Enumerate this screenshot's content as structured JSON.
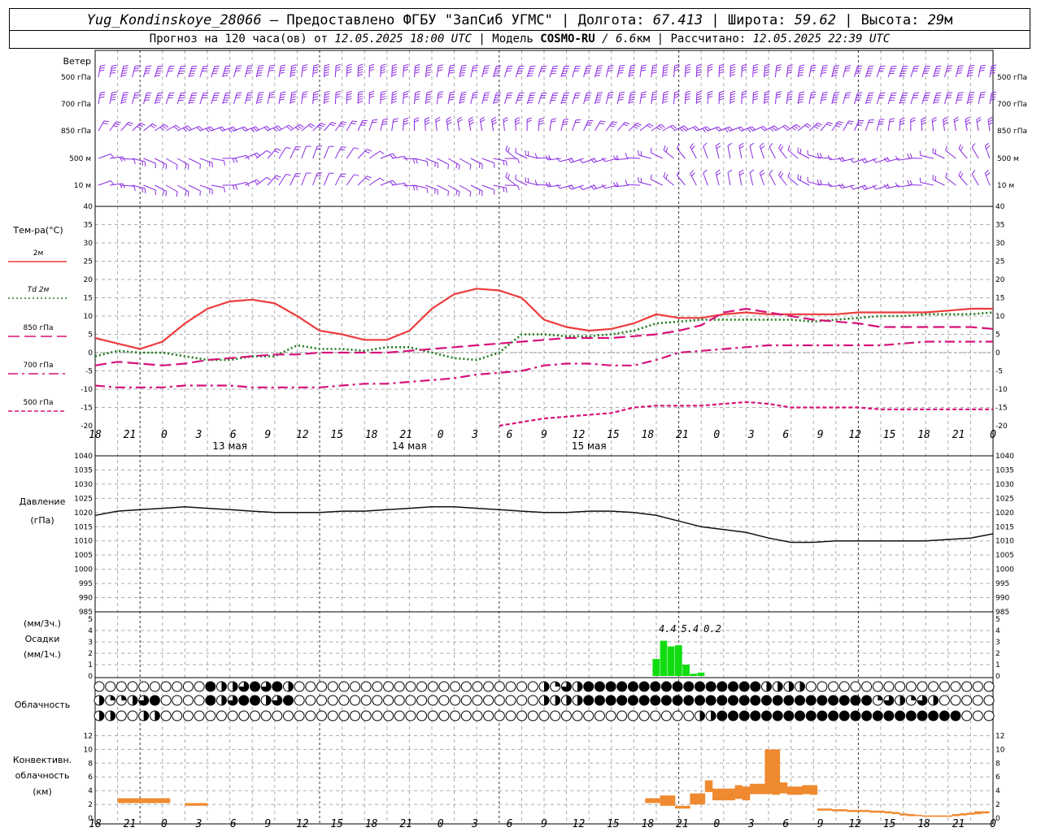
{
  "header": {
    "station": "Yug_Kondinskoye_28066",
    "provider": "– Предоставлено ФГБУ \"ЗапСиб УГМС\" |",
    "lon_label": "Долгота:",
    "lon": "67.413",
    "lat_label": "| Широта:",
    "lat": "59.62",
    "alt_label": "| Высота:",
    "alt": "29",
    "alt_unit": "м",
    "forecast_label": "Прогноз на 120 часа(ов) от",
    "forecast_start": "12.05.2025 18:00 UTC",
    "model_label": "| Модель",
    "model": "COSMO-RU",
    "resolution": "/ 6.6",
    "res_unit": "км",
    "calc_label": "| Рассчитано:",
    "calc_time": "12.05.2025 22:39 UTC"
  },
  "wind": {
    "title": "Ветер",
    "levels": [
      "500 гПа",
      "700 гПа",
      "850 гПа",
      "500 м",
      "10  м"
    ],
    "color": "#8a2be2"
  },
  "temp": {
    "title": "Тем-ра(°C)",
    "legend": [
      {
        "label": "2м",
        "color": "#ee3b3b",
        "style": "solid"
      },
      {
        "label": "Td 2м",
        "color": "#1a7a1a",
        "style": "dotted"
      },
      {
        "label": "850 гПа",
        "color": "#d6117a",
        "style": "longdash"
      },
      {
        "label": "700 гПа",
        "color": "#d6117a",
        "style": "dashdot"
      },
      {
        "label": "500 гПа",
        "color": "#d6117a",
        "style": "dash"
      }
    ]
  },
  "pressure": {
    "title_1": "Давление",
    "title_2": "(гПа)"
  },
  "precip": {
    "title_1": "(мм/3ч.)",
    "title_2": "Осадки",
    "title_3": "(мм/1ч.)",
    "color": "#11dd11"
  },
  "clouds": {
    "title": "Облачность"
  },
  "convective": {
    "title_1": "Конвективн.",
    "title_2": "облачность",
    "title_3": "(км)",
    "color": "#f08a30"
  },
  "x_axis": {
    "ticks": [
      "18",
      "21",
      "0",
      "3",
      "6",
      "9",
      "12",
      "15",
      "18",
      "21",
      "0",
      "3",
      "6",
      "9",
      "12",
      "15",
      "18",
      "21",
      "0",
      "3",
      "6",
      "9",
      "12",
      "15",
      "18",
      "21",
      "0"
    ],
    "dates": [
      "13 мая",
      "14 мая",
      "15 мая"
    ]
  },
  "chart_data": [
    {
      "type": "line",
      "name": "temperature",
      "x_hours": [
        0,
        3,
        6,
        9,
        12,
        15,
        18,
        21,
        24,
        27,
        30,
        33,
        36,
        39,
        42,
        45,
        48,
        51,
        54,
        57,
        60,
        63,
        66,
        69,
        72,
        75,
        78,
        81,
        84,
        87,
        90,
        93,
        96,
        99,
        102,
        105,
        108,
        111,
        114,
        117,
        120
      ],
      "ylim": [
        -20,
        40
      ],
      "yticks": [
        -20,
        -15,
        -10,
        -5,
        0,
        5,
        10,
        15,
        20,
        25,
        30,
        35,
        40
      ],
      "series": [
        {
          "name": "2м",
          "values": [
            4,
            2.5,
            1,
            3,
            8,
            12,
            14,
            14.5,
            13.5,
            10,
            6,
            5,
            3.5,
            3.5,
            6,
            12,
            16,
            17.5,
            17,
            15,
            9,
            7,
            6,
            6.5,
            8,
            10.5,
            9.5,
            9.5,
            10.5,
            11,
            10.5,
            10.5,
            10.5,
            10.5,
            11,
            11,
            11,
            11,
            11.5,
            12,
            12
          ]
        },
        {
          "name": "Td 2м",
          "values": [
            -1,
            0.5,
            0,
            0,
            -1,
            -2,
            -2,
            -1,
            -1,
            2,
            1,
            1,
            0.5,
            1.5,
            1.5,
            0,
            -1.5,
            -2,
            0,
            5,
            5,
            4.5,
            4.5,
            5,
            6,
            8,
            8.5,
            9,
            9,
            9,
            9,
            9,
            8.5,
            9,
            9.5,
            10,
            10,
            10.5,
            10.5,
            10.5,
            11
          ]
        },
        {
          "name": "850 гПа",
          "values": [
            -3.5,
            -2.5,
            -3,
            -3.5,
            -3,
            -2,
            -1.5,
            -1,
            -0.5,
            -0.5,
            0,
            0,
            0,
            0,
            0.5,
            1,
            1.5,
            2,
            2.5,
            3,
            3.5,
            4,
            4,
            4,
            4.5,
            5,
            6,
            7.5,
            11,
            12,
            11,
            10,
            9,
            8.5,
            8,
            7,
            7,
            7,
            7,
            7,
            6.5
          ]
        },
        {
          "name": "700 гПа",
          "values": [
            -9,
            -9.5,
            -9.5,
            -9.5,
            -9,
            -9,
            -9,
            -9.5,
            -9.5,
            -9.5,
            -9.5,
            -9,
            -8.5,
            -8.5,
            -8,
            -7.5,
            -7,
            -6,
            -5.5,
            -5,
            -3.5,
            -3,
            -3,
            -3.5,
            -3.5,
            -2,
            0,
            0.5,
            1,
            1.5,
            2,
            2,
            2,
            2,
            2,
            2,
            2.5,
            3,
            3,
            3,
            3
          ]
        },
        {
          "name": "500 гПа",
          "values": [
            null,
            null,
            null,
            null,
            null,
            null,
            null,
            null,
            null,
            null,
            null,
            null,
            null,
            null,
            null,
            null,
            null,
            null,
            -20,
            -19,
            -18,
            -17.5,
            -17,
            -16.5,
            -15,
            -14.5,
            -14.5,
            -14.5,
            -14,
            -13.5,
            -14,
            -15,
            -15,
            -15,
            -15,
            -15.5,
            -15.5,
            -15.5,
            -15.5,
            -15.5,
            -15.5
          ]
        }
      ]
    },
    {
      "type": "line",
      "name": "pressure",
      "x_hours": [
        0,
        3,
        6,
        9,
        12,
        15,
        18,
        21,
        24,
        27,
        30,
        33,
        36,
        39,
        42,
        45,
        48,
        51,
        54,
        57,
        60,
        63,
        66,
        69,
        72,
        75,
        78,
        81,
        84,
        87,
        90,
        93,
        96,
        99,
        102,
        105,
        108,
        111,
        114,
        117,
        120
      ],
      "ylim": [
        985,
        1040
      ],
      "yticks": [
        985,
        990,
        995,
        1000,
        1005,
        1010,
        1015,
        1020,
        1025,
        1030,
        1035,
        1040
      ],
      "series": [
        {
          "name": "Давление",
          "values": [
            1019,
            1020.5,
            1021,
            1021.5,
            1022,
            1021.5,
            1021,
            1020.5,
            1020,
            1020,
            1020,
            1020.5,
            1020.5,
            1021,
            1021.5,
            1022,
            1022,
            1021.5,
            1021,
            1020.5,
            1020,
            1020,
            1020.5,
            1020.5,
            1020,
            1019,
            1017,
            1015,
            1014,
            1013,
            1011,
            1009.5,
            1009.5,
            1010,
            1010,
            1010,
            1010,
            1010,
            1010.5,
            1011,
            1012.5
          ]
        }
      ]
    },
    {
      "type": "bar",
      "name": "precipitation",
      "x_hours": [
        75,
        76,
        77,
        78,
        79,
        80,
        81,
        82,
        83,
        84,
        85,
        86
      ],
      "values": [
        1.5,
        3.1,
        2.6,
        2.7,
        1,
        0.2,
        0.3,
        0,
        0,
        0,
        0,
        0
      ],
      "ylim": [
        0,
        5
      ],
      "yticks": [
        0,
        1,
        2,
        3,
        4,
        5
      ],
      "annotations": [
        {
          "text": "4.4",
          "x_hour": 76.5
        },
        {
          "text": "5.4",
          "x_hour": 79.5
        },
        {
          "text": "0.2",
          "x_hour": 82.5
        }
      ]
    },
    {
      "type": "bar",
      "name": "convective_clouds",
      "x_hours": [
        3.5,
        4.5,
        5.5,
        6.5,
        7.5,
        8.5,
        9.5,
        12.5,
        13.5,
        14.5,
        74,
        75,
        76,
        77,
        78,
        79,
        80,
        81,
        82,
        83,
        84,
        85,
        86,
        87,
        88,
        89,
        90,
        91,
        92,
        93,
        94,
        95,
        96,
        97,
        98,
        99,
        100,
        101,
        102,
        103,
        104,
        105,
        106,
        107,
        108,
        109,
        110,
        111,
        112,
        113,
        114,
        115,
        116,
        117,
        118,
        119
      ],
      "bases": [
        2.2,
        2.2,
        2.2,
        2.2,
        2.2,
        2.2,
        2.2,
        1.8,
        1.8,
        1.8,
        2.2,
        2.2,
        1.8,
        1.8,
        1.4,
        1.4,
        2,
        2,
        3.8,
        2.6,
        2.6,
        2.6,
        2.8,
        2.6,
        3.5,
        3.5,
        3.5,
        3.4,
        3.6,
        3.4,
        3.4,
        3.5,
        3.4,
        1.1,
        1.1,
        1,
        1,
        0.9,
        0.9,
        0.9,
        0.8,
        0.8,
        0.7,
        0.6,
        0.4,
        0.3,
        0.3,
        0.2,
        0.2,
        0.2,
        0.2,
        0.3,
        0.4,
        0.5,
        0.6,
        0.7
      ],
      "tops": [
        2.9,
        2.9,
        2.9,
        2.9,
        2.9,
        2.9,
        2.9,
        2.2,
        2.2,
        2.2,
        2.9,
        2.9,
        3.3,
        3.3,
        1.8,
        1.8,
        3.6,
        3.6,
        5.5,
        4.3,
        4.3,
        4.3,
        4.8,
        4.6,
        5,
        5,
        10,
        10,
        5.2,
        4.6,
        4.6,
        4.8,
        4.8,
        1.4,
        1.4,
        1.3,
        1.3,
        1.2,
        1.2,
        1.2,
        1.1,
        1.1,
        1,
        0.9,
        0.7,
        0.6,
        0.5,
        0.4,
        0.4,
        0.4,
        0.4,
        0.6,
        0.7,
        0.8,
        1,
        1
      ],
      "ylim": [
        0,
        13
      ],
      "yticks": [
        0,
        2,
        4,
        6,
        8,
        10,
        12
      ]
    }
  ]
}
